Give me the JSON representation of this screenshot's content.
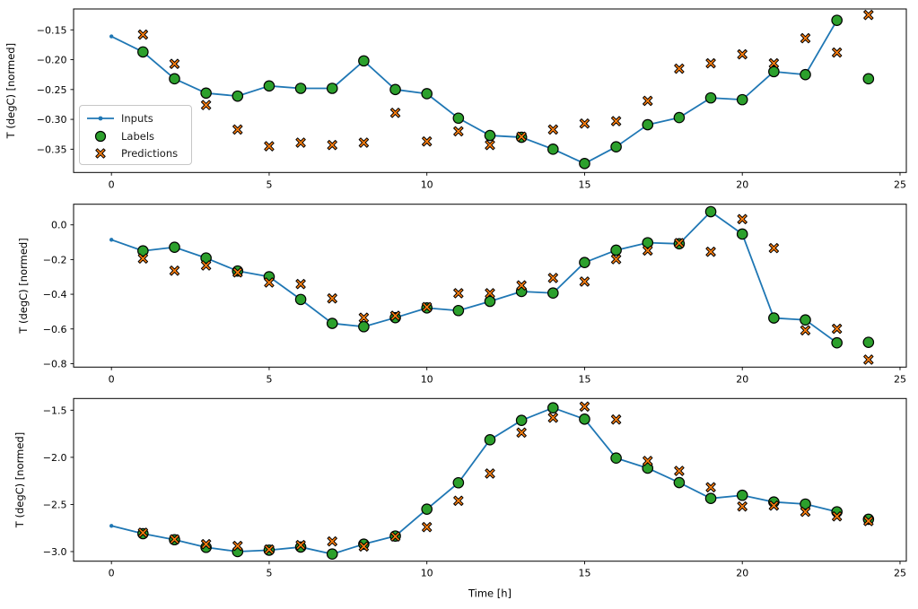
{
  "figure": {
    "xlabel": "Time [h]",
    "ylabel": "T (degC) [normed]",
    "background": "#ffffff",
    "colors": {
      "inputs": "#1f77b4",
      "labels": "#2ca02c",
      "predictions": "#ff7f0e",
      "marker_edge": "#000000",
      "axis": "#000000",
      "legend_border": "#c7c7c7"
    },
    "legend": {
      "items": [
        "Inputs",
        "Labels",
        "Predictions"
      ],
      "position": "center left",
      "subplot": 1
    }
  },
  "chart_data": [
    {
      "type": "line+scatter",
      "title": "",
      "xlabel": "",
      "ylabel": "T (degC) [normed]",
      "xlim": [
        -1.2,
        25.2
      ],
      "ylim": [
        -0.389,
        -0.115
      ],
      "grid": false,
      "xtick_values": [
        0,
        5,
        10,
        15,
        20,
        25
      ],
      "xtick_labels": [
        "0",
        "5",
        "10",
        "15",
        "20",
        "25"
      ],
      "ytick_values": [
        -0.15,
        -0.2,
        -0.25,
        -0.3,
        -0.35
      ],
      "ytick_labels": [
        "−0.15",
        "−0.20",
        "−0.25",
        "−0.30",
        "−0.35"
      ],
      "legend_visible": true,
      "series": [
        {
          "name": "Inputs",
          "kind": "line",
          "marker": "point",
          "color": "#1f77b4",
          "x": [
            0,
            1,
            2,
            3,
            4,
            5,
            6,
            7,
            8,
            9,
            10,
            11,
            12,
            13,
            14,
            15,
            16,
            17,
            18,
            19,
            20,
            21,
            22,
            23
          ],
          "y": [
            -0.161,
            -0.187,
            -0.232,
            -0.256,
            -0.261,
            -0.244,
            -0.248,
            -0.248,
            -0.202,
            -0.25,
            -0.257,
            -0.298,
            -0.327,
            -0.33,
            -0.35,
            -0.374,
            -0.346,
            -0.309,
            -0.297,
            -0.264,
            -0.267,
            -0.22,
            -0.225,
            -0.134
          ]
        },
        {
          "name": "Labels",
          "kind": "scatter",
          "marker": "circle",
          "color": "#2ca02c",
          "edge": "#000000",
          "x": [
            1,
            2,
            3,
            4,
            5,
            6,
            7,
            8,
            9,
            10,
            11,
            12,
            13,
            14,
            15,
            16,
            17,
            18,
            19,
            20,
            21,
            22,
            23,
            24
          ],
          "y": [
            -0.187,
            -0.232,
            -0.256,
            -0.261,
            -0.244,
            -0.248,
            -0.248,
            -0.202,
            -0.25,
            -0.257,
            -0.298,
            -0.327,
            -0.33,
            -0.35,
            -0.374,
            -0.346,
            -0.309,
            -0.297,
            -0.264,
            -0.267,
            -0.22,
            -0.225,
            -0.134,
            -0.232
          ]
        },
        {
          "name": "Predictions",
          "kind": "scatter",
          "marker": "X",
          "color": "#ff7f0e",
          "edge": "#000000",
          "x": [
            1,
            2,
            3,
            4,
            5,
            6,
            7,
            8,
            9,
            10,
            11,
            12,
            13,
            14,
            15,
            16,
            17,
            18,
            19,
            20,
            21,
            22,
            23,
            24
          ],
          "y": [
            -0.158,
            -0.207,
            -0.276,
            -0.317,
            -0.345,
            -0.339,
            -0.343,
            -0.339,
            -0.289,
            -0.337,
            -0.32,
            -0.343,
            -0.329,
            -0.317,
            -0.307,
            -0.303,
            -0.269,
            -0.215,
            -0.206,
            -0.191,
            -0.206,
            -0.164,
            -0.188,
            -0.125
          ]
        }
      ]
    },
    {
      "type": "line+scatter",
      "title": "",
      "xlabel": "",
      "ylabel": "T (degC) [normed]",
      "xlim": [
        -1.2,
        25.2
      ],
      "ylim": [
        -0.82,
        0.119
      ],
      "grid": false,
      "xtick_values": [
        0,
        5,
        10,
        15,
        20,
        25
      ],
      "xtick_labels": [
        "0",
        "5",
        "10",
        "15",
        "20",
        "25"
      ],
      "ytick_values": [
        0.0,
        -0.2,
        -0.4,
        -0.6,
        -0.8
      ],
      "ytick_labels": [
        "0.0",
        "−0.2",
        "−0.4",
        "−0.6",
        "−0.8"
      ],
      "legend_visible": false,
      "series": [
        {
          "name": "Inputs",
          "kind": "line",
          "marker": "point",
          "color": "#1f77b4",
          "x": [
            0,
            1,
            2,
            3,
            4,
            5,
            6,
            7,
            8,
            9,
            10,
            11,
            12,
            13,
            14,
            15,
            16,
            17,
            18,
            19,
            20,
            21,
            22,
            23
          ],
          "y": [
            -0.086,
            -0.15,
            -0.129,
            -0.191,
            -0.266,
            -0.299,
            -0.43,
            -0.568,
            -0.587,
            -0.535,
            -0.479,
            -0.494,
            -0.441,
            -0.384,
            -0.393,
            -0.217,
            -0.146,
            -0.103,
            -0.109,
            0.076,
            -0.053,
            -0.537,
            -0.548,
            -0.68
          ]
        },
        {
          "name": "Labels",
          "kind": "scatter",
          "marker": "circle",
          "color": "#2ca02c",
          "edge": "#000000",
          "x": [
            1,
            2,
            3,
            4,
            5,
            6,
            7,
            8,
            9,
            10,
            11,
            12,
            13,
            14,
            15,
            16,
            17,
            18,
            19,
            20,
            21,
            22,
            23,
            24
          ],
          "y": [
            -0.15,
            -0.129,
            -0.191,
            -0.266,
            -0.299,
            -0.43,
            -0.568,
            -0.587,
            -0.535,
            -0.479,
            -0.494,
            -0.441,
            -0.384,
            -0.393,
            -0.217,
            -0.146,
            -0.103,
            -0.109,
            0.076,
            -0.053,
            -0.537,
            -0.548,
            -0.68,
            -0.677
          ]
        },
        {
          "name": "Predictions",
          "kind": "scatter",
          "marker": "X",
          "color": "#ff7f0e",
          "edge": "#000000",
          "x": [
            1,
            2,
            3,
            4,
            5,
            6,
            7,
            8,
            9,
            10,
            11,
            12,
            13,
            14,
            15,
            16,
            17,
            18,
            19,
            20,
            21,
            22,
            23,
            24
          ],
          "y": [
            -0.194,
            -0.264,
            -0.234,
            -0.274,
            -0.332,
            -0.341,
            -0.424,
            -0.535,
            -0.524,
            -0.474,
            -0.394,
            -0.394,
            -0.349,
            -0.306,
            -0.327,
            -0.198,
            -0.148,
            -0.105,
            -0.155,
            0.033,
            -0.134,
            -0.608,
            -0.599,
            -0.777
          ]
        }
      ]
    },
    {
      "type": "line+scatter",
      "title": "",
      "xlabel": "Time [h]",
      "ylabel": "T (degC) [normed]",
      "xlim": [
        -1.2,
        25.2
      ],
      "ylim": [
        -3.102,
        -1.376
      ],
      "grid": false,
      "xtick_values": [
        0,
        5,
        10,
        15,
        20,
        25
      ],
      "xtick_labels": [
        "0",
        "5",
        "10",
        "15",
        "20",
        "25"
      ],
      "ytick_values": [
        -1.5,
        -2.0,
        -2.5,
        -3.0
      ],
      "ytick_labels": [
        "−1.5",
        "−2.0",
        "−2.5",
        "−3.0"
      ],
      "legend_visible": false,
      "series": [
        {
          "name": "Inputs",
          "kind": "line",
          "marker": "point",
          "color": "#1f77b4",
          "x": [
            0,
            1,
            2,
            3,
            4,
            5,
            6,
            7,
            8,
            9,
            10,
            11,
            12,
            13,
            14,
            15,
            16,
            17,
            18,
            19,
            20,
            21,
            22,
            23
          ],
          "y": [
            -2.727,
            -2.81,
            -2.874,
            -2.955,
            -3.0,
            -2.985,
            -2.952,
            -3.026,
            -2.921,
            -2.835,
            -2.55,
            -2.27,
            -1.814,
            -1.608,
            -1.475,
            -1.595,
            -2.008,
            -2.115,
            -2.268,
            -2.436,
            -2.403,
            -2.474,
            -2.496,
            -2.578
          ]
        },
        {
          "name": "Labels",
          "kind": "scatter",
          "marker": "circle",
          "color": "#2ca02c",
          "edge": "#000000",
          "x": [
            1,
            2,
            3,
            4,
            5,
            6,
            7,
            8,
            9,
            10,
            11,
            12,
            13,
            14,
            15,
            16,
            17,
            18,
            19,
            20,
            21,
            22,
            23,
            24
          ],
          "y": [
            -2.81,
            -2.874,
            -2.955,
            -3.0,
            -2.985,
            -2.952,
            -3.026,
            -2.921,
            -2.835,
            -2.55,
            -2.27,
            -1.814,
            -1.608,
            -1.475,
            -1.595,
            -2.008,
            -2.115,
            -2.268,
            -2.436,
            -2.403,
            -2.474,
            -2.496,
            -2.578,
            -2.657
          ]
        },
        {
          "name": "Predictions",
          "kind": "scatter",
          "marker": "X",
          "color": "#ff7f0e",
          "edge": "#000000",
          "x": [
            1,
            2,
            3,
            4,
            5,
            6,
            7,
            8,
            9,
            10,
            11,
            12,
            13,
            14,
            15,
            16,
            17,
            18,
            19,
            20,
            21,
            22,
            23,
            24
          ],
          "y": [
            -2.8,
            -2.87,
            -2.921,
            -2.94,
            -2.978,
            -2.931,
            -2.892,
            -2.946,
            -2.84,
            -2.74,
            -2.461,
            -2.172,
            -1.738,
            -1.58,
            -1.462,
            -1.599,
            -2.039,
            -2.144,
            -2.318,
            -2.521,
            -2.512,
            -2.578,
            -2.626,
            -2.676
          ]
        }
      ]
    }
  ]
}
